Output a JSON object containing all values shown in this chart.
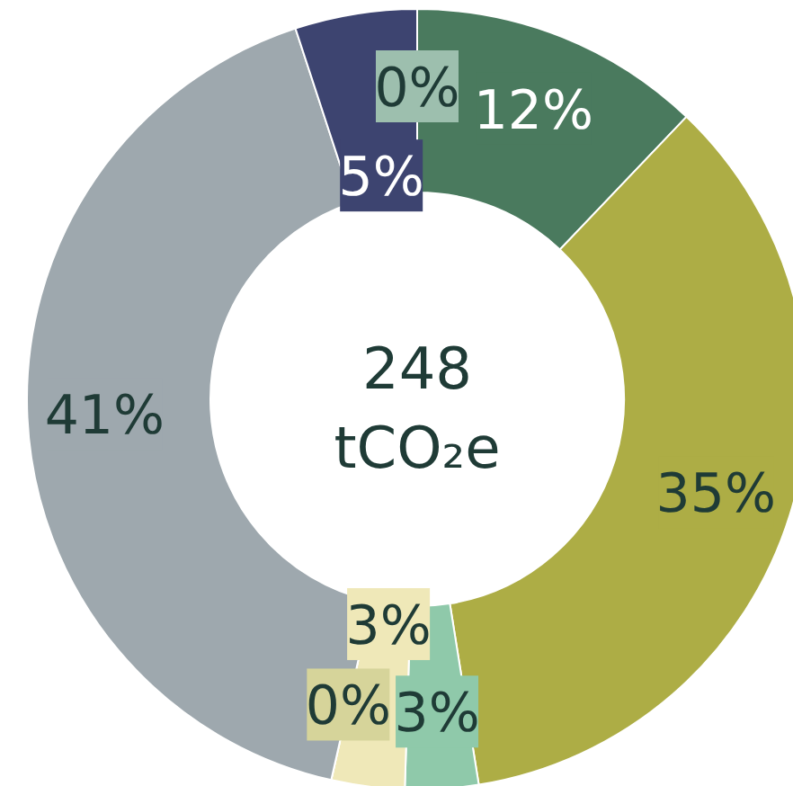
{
  "chart_data": {
    "type": "donut",
    "title": "248",
    "subtitle": "tCO₂e",
    "categories": [
      null,
      null,
      null,
      null,
      null,
      null,
      null,
      null
    ],
    "values": [
      0,
      12,
      35,
      3,
      3,
      0,
      41,
      5
    ],
    "colors": [
      "#9dbfae",
      "#4a7a5e",
      "#adad45",
      "#8fc9aa",
      "#efe8b8",
      "#d6d49a",
      "#9ea8ae",
      "#3d4470"
    ],
    "value_labels": [
      "0%",
      "12%",
      "35%",
      "3%",
      "3%",
      "0%",
      "41%",
      "5%"
    ]
  }
}
